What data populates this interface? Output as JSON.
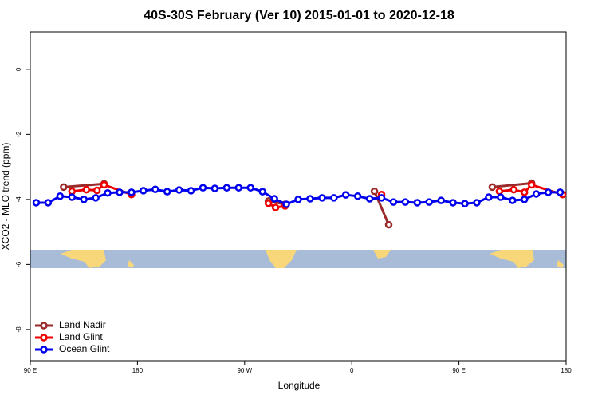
{
  "chart_data": {
    "type": "line",
    "title": "40S-30S February (Ver 10)   2015-01-01 to 2020-12-18",
    "x_label": "Longitude",
    "y_label": "XCO2 - MLO trend (ppm)",
    "xlim": [
      90,
      540
    ],
    "ylim": [
      -8.96,
      1.15
    ],
    "xticks": [
      {
        "value": 90,
        "label": "90 E"
      },
      180,
      {
        "value": 270,
        "label": "90 W"
      },
      {
        "value": 360,
        "label": "0"
      },
      {
        "value": 450,
        "label": "90 E"
      },
      {
        "value": 540,
        "label": "180"
      }
    ],
    "yticks": [
      0,
      -2,
      -4,
      -6,
      -8
    ],
    "legend": "bottom-left",
    "series": [
      {
        "name": "Land Nadir",
        "color": "#9b2a2a",
        "x": [
          118,
          152,
          null,
          290,
          304,
          null,
          379,
          391,
          null,
          478,
          511
        ],
        "values": [
          -3.62,
          -3.52,
          null,
          -4.05,
          -4.15,
          null,
          -3.75,
          -4.78,
          null,
          -3.62,
          -3.5
        ]
      },
      {
        "name": "Land Glint",
        "color": "#ee0000",
        "x": [
          125,
          137,
          146,
          152,
          175,
          null,
          290,
          296,
          304,
          null,
          385,
          null,
          484,
          496,
          505,
          511,
          537
        ],
        "values": [
          -3.75,
          -3.7,
          -3.72,
          -3.55,
          -3.85,
          null,
          -4.12,
          -4.25,
          -4.2,
          null,
          -3.85,
          null,
          -3.75,
          -3.7,
          -3.78,
          -3.55,
          -3.85
        ]
      },
      {
        "name": "Ocean Glint",
        "color": "#0000ee",
        "x": [
          95,
          105,
          115,
          125,
          135,
          145,
          155,
          165,
          175,
          185,
          195,
          205,
          215,
          225,
          235,
          245,
          255,
          265,
          275,
          285,
          295,
          305,
          315,
          325,
          335,
          345,
          355,
          365,
          375,
          385,
          395,
          405,
          415,
          425,
          435,
          445,
          455,
          465,
          475,
          485,
          495,
          505,
          515,
          525,
          535
        ],
        "values": [
          -4.1,
          -4.1,
          -3.9,
          -3.93,
          -4.0,
          -3.95,
          -3.8,
          -3.78,
          -3.78,
          -3.73,
          -3.69,
          -3.76,
          -3.71,
          -3.73,
          -3.64,
          -3.66,
          -3.64,
          -3.64,
          -3.64,
          -3.76,
          -3.98,
          -4.15,
          -4.0,
          -3.98,
          -3.95,
          -3.95,
          -3.86,
          -3.9,
          -3.98,
          -3.95,
          -4.08,
          -4.08,
          -4.1,
          -4.08,
          -4.03,
          -4.1,
          -4.13,
          -4.1,
          -3.93,
          -3.93,
          -4.03,
          -4.0,
          -3.83,
          -3.78,
          -3.78
        ]
      }
    ]
  }
}
